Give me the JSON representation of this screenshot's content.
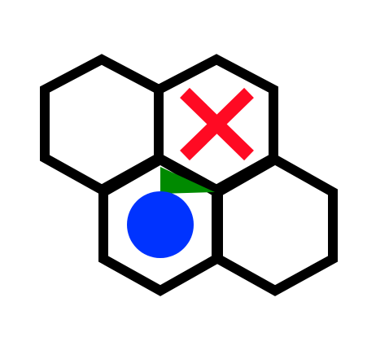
{
  "game": {
    "board_type": "hexagonal-grid",
    "cells": [
      {
        "id": "top-left",
        "content": "empty"
      },
      {
        "id": "top-right",
        "content": "goal"
      },
      {
        "id": "bottom-left",
        "content": "agent"
      },
      {
        "id": "bottom-right",
        "content": "empty"
      }
    ],
    "agent": {
      "cell": "bottom-left",
      "facing": "top-right"
    },
    "goal": {
      "cell": "top-right",
      "marker": "x-mark"
    }
  },
  "colors": {
    "background": "#ffffff",
    "hex_fill": "#ffffff",
    "hex_stroke": "#000000",
    "goal": "#ff0a23",
    "agent": "#0033ff",
    "view_cone": "#008a00"
  }
}
